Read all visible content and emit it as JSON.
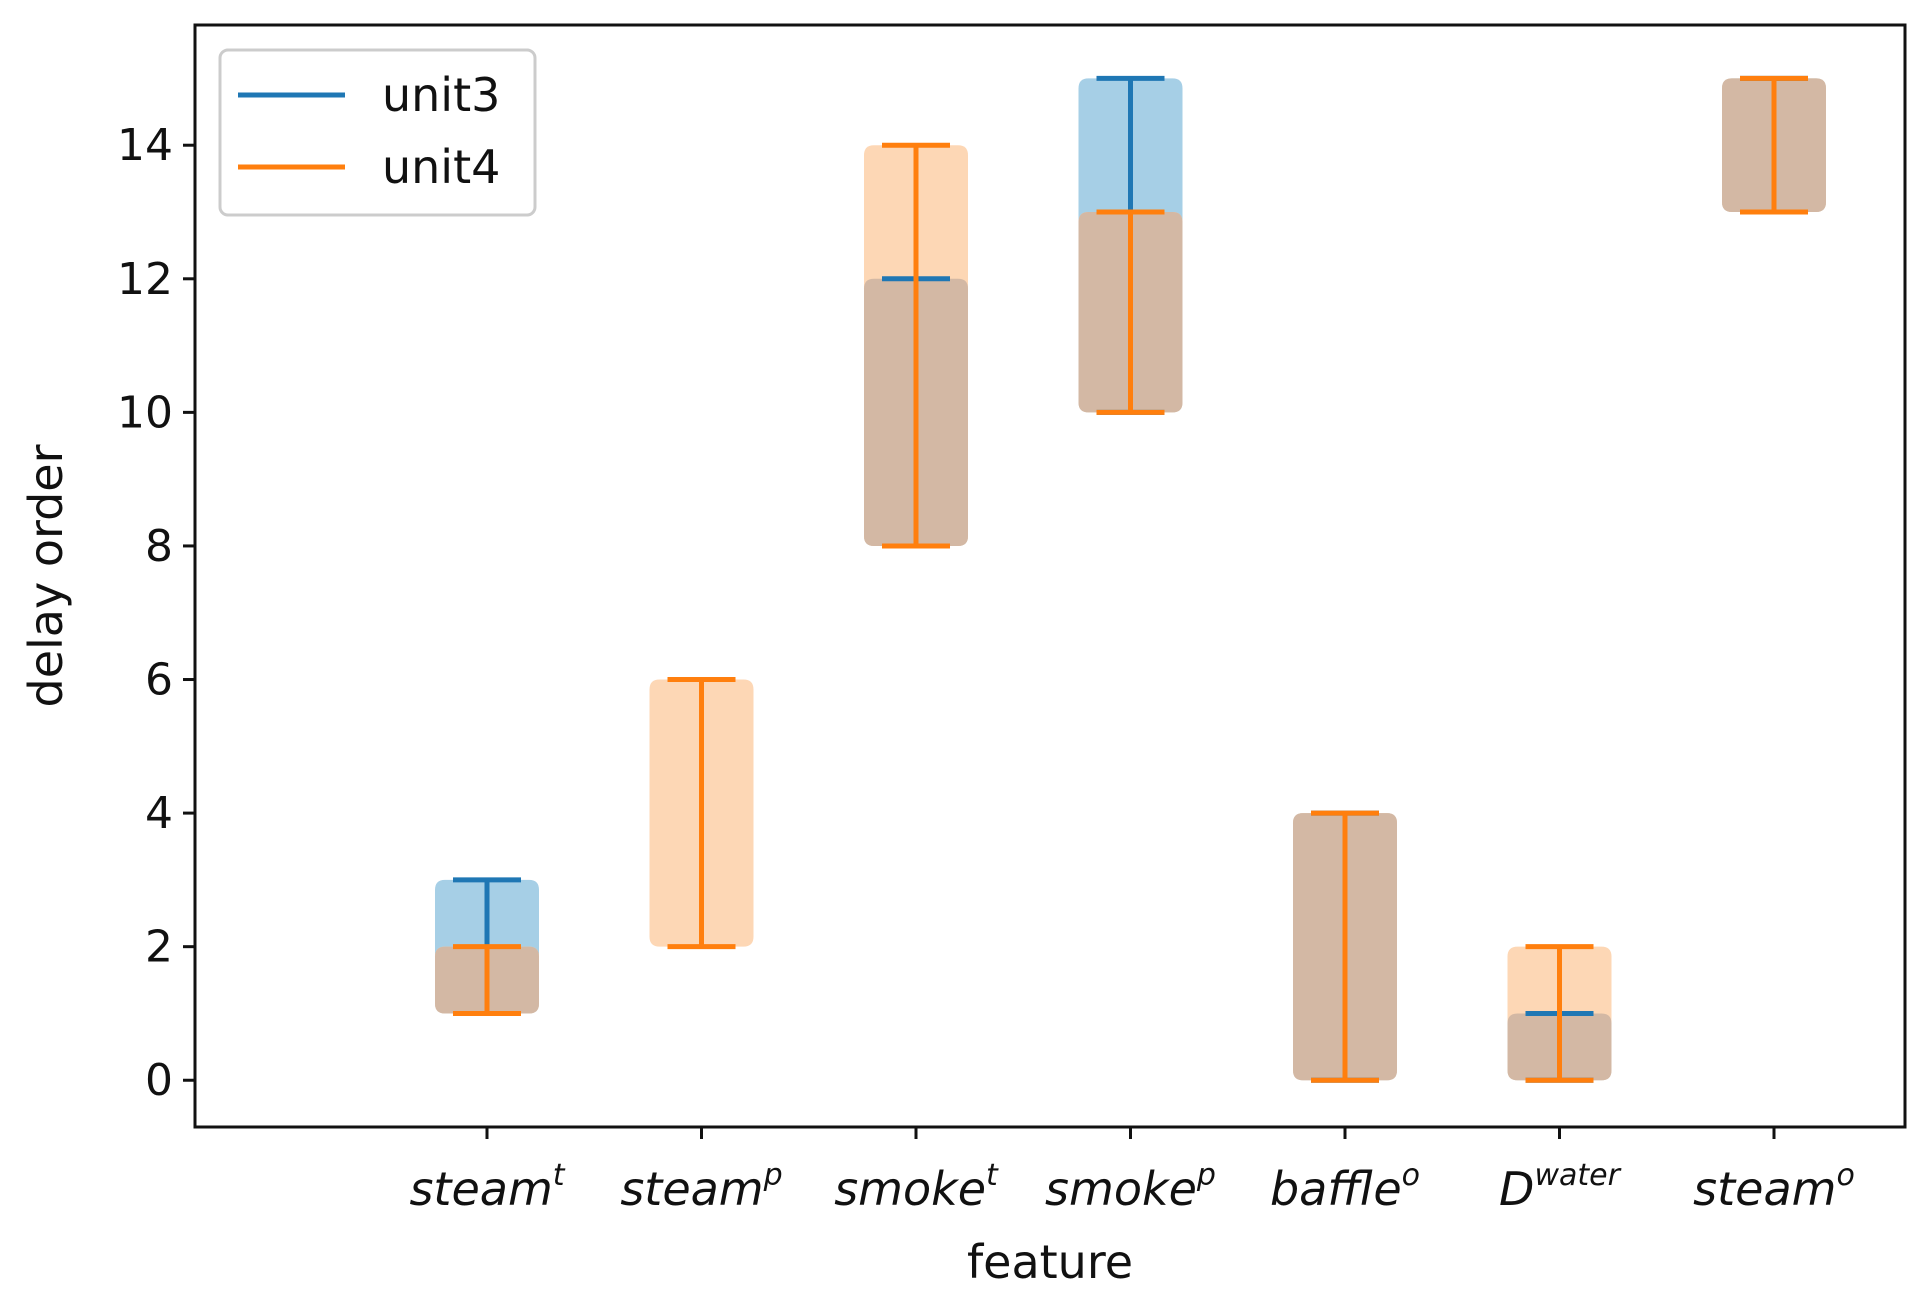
{
  "chart_data": {
    "type": "violin",
    "xlabel": "feature",
    "ylabel": "delay order",
    "ylim": [
      -0.7,
      15.8
    ],
    "yticks": [
      0,
      2,
      4,
      6,
      8,
      10,
      12,
      14
    ],
    "categories": [
      {
        "base": "steam",
        "sup": "t"
      },
      {
        "base": "steam",
        "sup": "p"
      },
      {
        "base": "smoke",
        "sup": "t"
      },
      {
        "base": "smoke",
        "sup": "p"
      },
      {
        "base": "baffle",
        "sup": "o"
      },
      {
        "base": "D",
        "sup": "water"
      },
      {
        "base": "steam",
        "sup": "o"
      }
    ],
    "series": [
      {
        "name": "unit3",
        "color": "#1f77b4",
        "fill": "#a6cfe6",
        "ranges": [
          [
            1,
            3
          ],
          null,
          [
            8,
            12
          ],
          [
            10,
            15
          ],
          [
            0,
            4
          ],
          [
            0,
            1
          ],
          [
            13,
            15
          ]
        ]
      },
      {
        "name": "unit4",
        "color": "#ff7f0e",
        "fill": "#fdd7b5",
        "ranges": [
          [
            1,
            2
          ],
          [
            2,
            6
          ],
          [
            8,
            14
          ],
          [
            10,
            13
          ],
          [
            0,
            4
          ],
          [
            0,
            2
          ],
          [
            13,
            15
          ]
        ]
      }
    ],
    "overlap_fill": "#d3b8a4",
    "legend_position": "upper-left",
    "grid": false
  }
}
